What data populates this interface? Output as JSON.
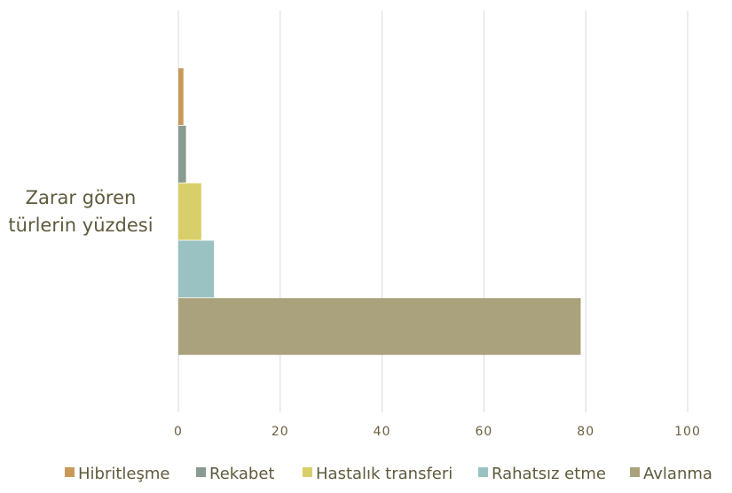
{
  "chart_data": {
    "type": "bar",
    "orientation": "horizontal",
    "category_label_lines": [
      "Zarar gören",
      "türlerin yüzdesi"
    ],
    "series": [
      {
        "name": "Hibritleşme",
        "value": 1,
        "color": "#c79a5a"
      },
      {
        "name": "Rekabet",
        "value": 1.5,
        "color": "#8a9b91"
      },
      {
        "name": "Hastalık transferi",
        "value": 4.5,
        "color": "#d9cf6a"
      },
      {
        "name": "Rahatsız etme",
        "value": 7,
        "color": "#9bc2c2"
      },
      {
        "name": "Avlanma",
        "value": 79,
        "color": "#aaa27c"
      }
    ],
    "xlim": [
      0,
      100
    ],
    "x_ticks": [
      0,
      20,
      40,
      60,
      80,
      100
    ],
    "grid": true,
    "legend_position": "bottom"
  }
}
